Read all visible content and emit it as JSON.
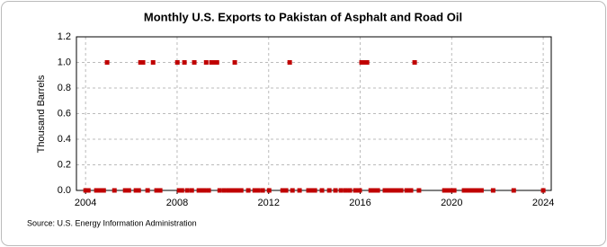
{
  "chart_data": {
    "type": "scatter",
    "title": "Monthly U.S. Exports to Pakistan of Asphalt and Road Oil",
    "y_label": "Thousand Barrels",
    "source": "Source: U.S. Energy Information Administration",
    "grid": true,
    "color": "#c00000",
    "x": [
      2004.94,
      2006.4,
      2006.51,
      2006.95,
      2008.01,
      2008.32,
      2008.75,
      2009.27,
      2009.5,
      2009.62,
      2009.74,
      2010.52,
      2012.92,
      2016.06,
      2016.18,
      2016.3,
      2018.38,
      2004.0,
      2004.12,
      2004.47,
      2004.63,
      2004.79,
      2005.26,
      2005.73,
      2005.89,
      2006.2,
      2006.32,
      2006.71,
      2007.1,
      2007.26,
      2008.09,
      2008.21,
      2008.44,
      2008.64,
      2008.95,
      2009.07,
      2009.19,
      2009.38,
      2009.86,
      2010.06,
      2010.25,
      2010.37,
      2010.48,
      2010.64,
      2010.8,
      2011.11,
      2011.39,
      2011.54,
      2011.74,
      2012.02,
      2012.61,
      2012.76,
      2013.04,
      2013.35,
      2013.74,
      2013.9,
      2014.02,
      2014.33,
      2014.65,
      2014.92,
      2015.16,
      2015.36,
      2015.55,
      2015.79,
      2015.98,
      2016.46,
      2016.61,
      2016.77,
      2017.08,
      2017.2,
      2017.32,
      2017.44,
      2017.56,
      2017.67,
      2017.79,
      2018.03,
      2018.22,
      2018.57,
      2019.68,
      2019.84,
      2019.99,
      2020.11,
      2020.54,
      2020.66,
      2020.82,
      2020.94,
      2021.06,
      2021.18,
      2021.3,
      2021.81,
      2022.71,
      2024.0
    ],
    "values": [
      1,
      1,
      1,
      1,
      1,
      1,
      1,
      1,
      1,
      1,
      1,
      1,
      1,
      1,
      1,
      1,
      1,
      0,
      0,
      0,
      0,
      0,
      0,
      0,
      0,
      0,
      0,
      0,
      0,
      0,
      0,
      0,
      0,
      0,
      0,
      0,
      0,
      0,
      0,
      0,
      0,
      0,
      0,
      0,
      0,
      0,
      0,
      0,
      0,
      0,
      0,
      0,
      0,
      0,
      0,
      0,
      0,
      0,
      0,
      0,
      0,
      0,
      0,
      0,
      0,
      0,
      0,
      0,
      0,
      0,
      0,
      0,
      0,
      0,
      0,
      0,
      0,
      0,
      0,
      0,
      0,
      0,
      0,
      0,
      0,
      0,
      0,
      0,
      0,
      0,
      0,
      0
    ],
    "xlim": [
      2003.6,
      2024.35
    ],
    "xticks": [
      2004,
      2008,
      2012,
      2016,
      2020,
      2024
    ],
    "ylim": [
      0,
      1.2
    ],
    "yticks": [
      {
        "value": 0,
        "label": "0.0"
      },
      {
        "value": 0.2,
        "label": "0.2"
      },
      {
        "value": 0.4,
        "label": "0.4"
      },
      {
        "value": 0.6,
        "label": "0.6"
      },
      {
        "value": 0.8,
        "label": "0.8"
      },
      {
        "value": 1,
        "label": "1.0"
      },
      {
        "value": 1.2,
        "label": "1.2"
      }
    ]
  }
}
